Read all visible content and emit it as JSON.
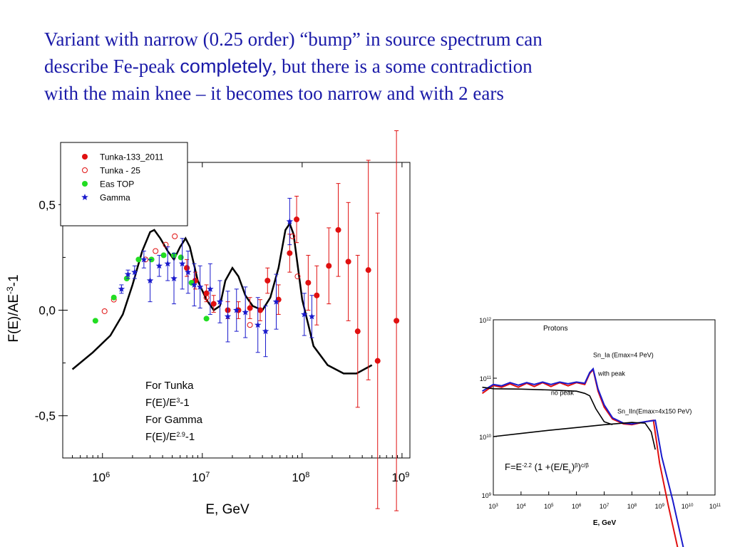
{
  "headline": {
    "line1": "Variant with narrow (0.25 order)  “bump” in source spectrum can",
    "line2_before": "describe Fe-peak ",
    "line2_sans": "completely",
    "line2_after": ", but there is a some contradiction",
    "line3": "with the main knee – it becomes too narrow and with 2 ears"
  },
  "colors": {
    "headline": "#1a1aa8",
    "red": "#e01010",
    "green": "#22dd22",
    "blue": "#1a1acc",
    "black": "#000000"
  },
  "chart_data": [
    {
      "type": "scatter",
      "xscale": "log",
      "xlim": [
        400000,
        1200000000
      ],
      "ylim": [
        -0.7,
        0.7
      ],
      "xlabel": "E, GeV",
      "ylabel_main": "F(E)/AE",
      "ylabel_sup": "-3",
      "ylabel_tail": "-1",
      "x_ticks": [
        {
          "value": 1000000,
          "base": "10",
          "exp": "6"
        },
        {
          "value": 10000000,
          "base": "10",
          "exp": "7"
        },
        {
          "value": 100000000,
          "base": "10",
          "exp": "8"
        },
        {
          "value": 1000000000,
          "base": "10",
          "exp": "9"
        }
      ],
      "y_ticks": [
        {
          "value": 0.5,
          "label": "0,5"
        },
        {
          "value": 0.0,
          "label": "0,0"
        },
        {
          "value": -0.5,
          "label": "-0,5"
        }
      ],
      "legend_position": "top-left",
      "legend": [
        {
          "label": "Tunka-133_2011",
          "marker": "filled-circle",
          "color": "#e01010"
        },
        {
          "label": "Tunka - 25",
          "marker": "open-circle",
          "color": "#e01010"
        },
        {
          "label": "Eas TOP",
          "marker": "filled-circle",
          "color": "#22dd22"
        },
        {
          "label": "Gamma",
          "marker": "star",
          "color": "#1a1acc"
        }
      ],
      "annotation": [
        {
          "main": "For Tunka"
        },
        {
          "main": "F(E)/E",
          "sup": "3",
          "tail": "-1"
        },
        {
          "main": "For Gamma"
        },
        {
          "main": "F(E)/E",
          "sup": "2.9",
          "tail": "-1"
        }
      ],
      "series": [
        {
          "marker": "filled-circle",
          "color": "#e01010",
          "points": [
            {
              "x": 7000000,
              "y": 0.2,
              "err": 0.04
            },
            {
              "x": 8500000,
              "y": 0.14,
              "err": 0.04
            },
            {
              "x": 11000000,
              "y": 0.08,
              "err": 0.04
            },
            {
              "x": 13000000,
              "y": 0.03,
              "err": 0.04
            },
            {
              "x": 18000000,
              "y": 0.0,
              "err": 0.04
            },
            {
              "x": 23000000,
              "y": 0.0,
              "err": 0.04
            },
            {
              "x": 30000000,
              "y": 0.01,
              "err": 0.05
            },
            {
              "x": 38000000,
              "y": 0.0,
              "err": 0.05
            },
            {
              "x": 45000000,
              "y": 0.14,
              "err": 0.06
            },
            {
              "x": 58000000,
              "y": 0.05,
              "err": 0.07
            },
            {
              "x": 75000000,
              "y": 0.27,
              "err": 0.09
            },
            {
              "x": 88000000,
              "y": 0.43,
              "err": 0.11
            },
            {
              "x": 115000000,
              "y": 0.13,
              "err": 0.13
            },
            {
              "x": 140000000,
              "y": 0.07,
              "err": 0.14
            },
            {
              "x": 185000000,
              "y": 0.21,
              "err": 0.18
            },
            {
              "x": 230000000,
              "y": 0.38,
              "err": 0.22
            },
            {
              "x": 290000000,
              "y": 0.23,
              "err": 0.28
            },
            {
              "x": 360000000,
              "y": -0.1,
              "err": 0.36
            },
            {
              "x": 460000000,
              "y": 0.19,
              "err": 0.52
            },
            {
              "x": 570000000,
              "y": -0.24,
              "err": 0.7
            },
            {
              "x": 880000000,
              "y": -0.05,
              "err": 0.9
            }
          ]
        },
        {
          "marker": "open-circle",
          "color": "#e01010",
          "points": [
            {
              "x": 1050000,
              "y": -0.005
            },
            {
              "x": 1300000,
              "y": 0.05
            },
            {
              "x": 2700000,
              "y": 0.24
            },
            {
              "x": 3400000,
              "y": 0.28
            },
            {
              "x": 4300000,
              "y": 0.31
            },
            {
              "x": 5300000,
              "y": 0.35
            },
            {
              "x": 7000000,
              "y": 0.2
            },
            {
              "x": 11000000,
              "y": 0.06
            },
            {
              "x": 30000000,
              "y": -0.07
            },
            {
              "x": 80000000,
              "y": 0.35
            },
            {
              "x": 90000000,
              "y": 0.16
            }
          ]
        },
        {
          "marker": "filled-circle",
          "color": "#22dd22",
          "points": [
            {
              "x": 850000,
              "y": -0.05
            },
            {
              "x": 1300000,
              "y": 0.06
            },
            {
              "x": 1750000,
              "y": 0.15
            },
            {
              "x": 2300000,
              "y": 0.24
            },
            {
              "x": 3100000,
              "y": 0.24
            },
            {
              "x": 4100000,
              "y": 0.26
            },
            {
              "x": 5200000,
              "y": 0.26
            },
            {
              "x": 6100000,
              "y": 0.25
            },
            {
              "x": 7800000,
              "y": 0.13
            },
            {
              "x": 11000000,
              "y": -0.04
            }
          ]
        },
        {
          "marker": "star",
          "color": "#1a1acc",
          "points": [
            {
              "x": 1550000,
              "y": 0.1,
              "err": 0.02
            },
            {
              "x": 1800000,
              "y": 0.17,
              "err": 0.02
            },
            {
              "x": 2100000,
              "y": 0.18,
              "err": 0.03
            },
            {
              "x": 2600000,
              "y": 0.24,
              "err": 0.04
            },
            {
              "x": 3000000,
              "y": 0.14,
              "err": 0.1
            },
            {
              "x": 3700000,
              "y": 0.21,
              "err": 0.05
            },
            {
              "x": 4500000,
              "y": 0.22,
              "err": 0.08
            },
            {
              "x": 5200000,
              "y": 0.15,
              "err": 0.12
            },
            {
              "x": 6300000,
              "y": 0.22,
              "err": 0.12
            },
            {
              "x": 7200000,
              "y": 0.18,
              "err": 0.1
            },
            {
              "x": 8300000,
              "y": 0.12,
              "err": 0.1
            },
            {
              "x": 9500000,
              "y": 0.11,
              "err": 0.1
            },
            {
              "x": 12000000,
              "y": 0.1,
              "err": 0.12
            },
            {
              "x": 15000000,
              "y": 0.04,
              "err": 0.1
            },
            {
              "x": 18000000,
              "y": -0.03,
              "err": 0.12
            },
            {
              "x": 22000000,
              "y": 0.0,
              "err": 0.1
            },
            {
              "x": 27000000,
              "y": -0.01,
              "err": 0.12
            },
            {
              "x": 36000000,
              "y": -0.07,
              "err": 0.13
            },
            {
              "x": 43000000,
              "y": -0.1,
              "err": 0.12
            },
            {
              "x": 55000000,
              "y": 0.04,
              "err": 0.13
            },
            {
              "x": 75000000,
              "y": 0.42,
              "err": 0.11
            },
            {
              "x": 105000000,
              "y": -0.02,
              "err": 0.1
            },
            {
              "x": 125000000,
              "y": -0.03,
              "err": 0.1
            }
          ]
        }
      ],
      "curve": {
        "color": "#000000",
        "points": [
          [
            500000,
            -0.28
          ],
          [
            800000,
            -0.2
          ],
          [
            1200000,
            -0.12
          ],
          [
            1600000,
            -0.02
          ],
          [
            2000000,
            0.12
          ],
          [
            2500000,
            0.28
          ],
          [
            3000000,
            0.37
          ],
          [
            3300000,
            0.38
          ],
          [
            3800000,
            0.34
          ],
          [
            4500000,
            0.28
          ],
          [
            5200000,
            0.24
          ],
          [
            6000000,
            0.3
          ],
          [
            6800000,
            0.34
          ],
          [
            7500000,
            0.3
          ],
          [
            9000000,
            0.14
          ],
          [
            11000000,
            0.05
          ],
          [
            13000000,
            0.0
          ],
          [
            15000000,
            0.02
          ],
          [
            17000000,
            0.14
          ],
          [
            20000000,
            0.2
          ],
          [
            23000000,
            0.16
          ],
          [
            27000000,
            0.07
          ],
          [
            32000000,
            0.02
          ],
          [
            40000000,
            0.0
          ],
          [
            48000000,
            0.06
          ],
          [
            58000000,
            0.2
          ],
          [
            68000000,
            0.38
          ],
          [
            75000000,
            0.41
          ],
          [
            82000000,
            0.36
          ],
          [
            100000000,
            0.05
          ],
          [
            130000000,
            -0.17
          ],
          [
            180000000,
            -0.26
          ],
          [
            260000000,
            -0.3
          ],
          [
            350000000,
            -0.3
          ],
          [
            500000000,
            -0.26
          ]
        ]
      }
    },
    {
      "type": "line",
      "xscale": "log",
      "yscale": "log",
      "title": "Protons",
      "xlabel": "E, GeV",
      "x_ticks": [
        {
          "value": 1000,
          "base": "10",
          "exp": "3"
        },
        {
          "value": 10000,
          "base": "10",
          "exp": "4"
        },
        {
          "value": 100000,
          "base": "10",
          "exp": "5"
        },
        {
          "value": 1000000,
          "base": "10",
          "exp": "6"
        },
        {
          "value": 10000000,
          "base": "10",
          "exp": "7"
        },
        {
          "value": 100000000,
          "base": "10",
          "exp": "8"
        },
        {
          "value": 1000000000,
          "base": "10",
          "exp": "9"
        },
        {
          "value": 10000000000,
          "base": "10",
          "exp": "10"
        },
        {
          "value": 100000000000,
          "base": "10",
          "exp": "11"
        }
      ],
      "y_ticks": [
        {
          "value": 1000000000000,
          "base": "10",
          "exp": "12"
        },
        {
          "value": 100000000000,
          "base": "10",
          "exp": "11"
        },
        {
          "value": 10000000000,
          "base": "10",
          "exp": "10"
        },
        {
          "value": 1000000000,
          "base": "10",
          "exp": "9"
        }
      ],
      "labels": [
        {
          "text": "Sn_Ia (Emax=4 PeV)",
          "x": 4000000,
          "y": 230000000000
        },
        {
          "text": "with peak",
          "x": 6000000,
          "y": 110000000000
        },
        {
          "text": "no peak",
          "x": 120000,
          "y": 52000000000
        },
        {
          "text": "Sn_IIn(Emax=4x150 PeV)",
          "x": 30000000,
          "y": 25000000000
        }
      ],
      "formula": {
        "prefix": "F=E",
        "exp": "-2.2",
        "middle": " (1 +(E/E",
        "sub": "k",
        "close": ")",
        "beta": "β",
        "close2": ")",
        "outer": "c/β"
      },
      "series": [
        {
          "color": "#e01010",
          "points": [
            [
              400,
              55000000000
            ],
            [
              1000,
              75000000000
            ],
            [
              2000,
              70000000000
            ],
            [
              4000,
              80000000000
            ],
            [
              8000,
              70000000000
            ],
            [
              16000,
              82000000000
            ],
            [
              30000,
              72000000000
            ],
            [
              60000,
              84000000000
            ],
            [
              120000,
              72000000000
            ],
            [
              250000,
              84000000000
            ],
            [
              500000,
              74000000000
            ],
            [
              1000000,
              84000000000
            ],
            [
              2000000,
              78000000000
            ],
            [
              3000000,
              120000000000
            ],
            [
              4000000,
              140000000000
            ],
            [
              6000000,
              60000000000
            ],
            [
              10000000,
              32000000000
            ],
            [
              20000000,
              20000000000
            ],
            [
              50000000,
              16500000000
            ],
            [
              100000000,
              16000000000
            ],
            [
              300000000,
              18000000000
            ],
            [
              600000000,
              19000000000
            ],
            [
              1000000000,
              3500000000
            ],
            [
              2000000000,
              700000000
            ],
            [
              5000000000,
              100000000
            ]
          ]
        },
        {
          "color": "#1a1acc",
          "points": [
            [
              400,
              60000000000
            ],
            [
              1000,
              78000000000
            ],
            [
              2000,
              74000000000
            ],
            [
              4000,
              84000000000
            ],
            [
              8000,
              76000000000
            ],
            [
              16000,
              84000000000
            ],
            [
              30000,
              78000000000
            ],
            [
              60000,
              86000000000
            ],
            [
              120000,
              78000000000
            ],
            [
              250000,
              86000000000
            ],
            [
              500000,
              80000000000
            ],
            [
              1000000,
              86000000000
            ],
            [
              2000000,
              82000000000
            ],
            [
              3000000,
              125000000000
            ],
            [
              4000000,
              145000000000
            ],
            [
              6000000,
              65000000000
            ],
            [
              10000000,
              35000000000
            ],
            [
              20000000,
              21000000000
            ],
            [
              50000000,
              17000000000
            ],
            [
              100000000,
              16500000000
            ],
            [
              300000000,
              18000000000
            ],
            [
              700000000,
              19000000000
            ],
            [
              1200000000,
              4500000000
            ],
            [
              3000000000,
              800000000
            ],
            [
              8000000000,
              100000000
            ]
          ]
        },
        {
          "color": "#000000",
          "points": [
            [
              400,
              70000000000
            ],
            [
              1000,
              66000000000
            ],
            [
              10000,
              65000000000
            ],
            [
              100000,
              63000000000
            ],
            [
              1000000,
              60000000000
            ],
            [
              2000000,
              55000000000
            ],
            [
              3000000,
              50000000000
            ],
            [
              5000000,
              30000000000
            ],
            [
              10000000,
              18000000000
            ],
            [
              20000000,
              16000000000
            ]
          ]
        },
        {
          "color": "#000000",
          "points": [
            [
              1000,
              10000000000
            ],
            [
              10000,
              11300000000
            ],
            [
              100000,
              12800000000
            ],
            [
              1000000,
              14300000000
            ],
            [
              10000000,
              16000000000
            ],
            [
              100000000,
              17500000000
            ],
            [
              300000000,
              17000000000
            ],
            [
              500000000,
              12000000000
            ],
            [
              700000000,
              6000000000
            ]
          ]
        }
      ]
    }
  ]
}
